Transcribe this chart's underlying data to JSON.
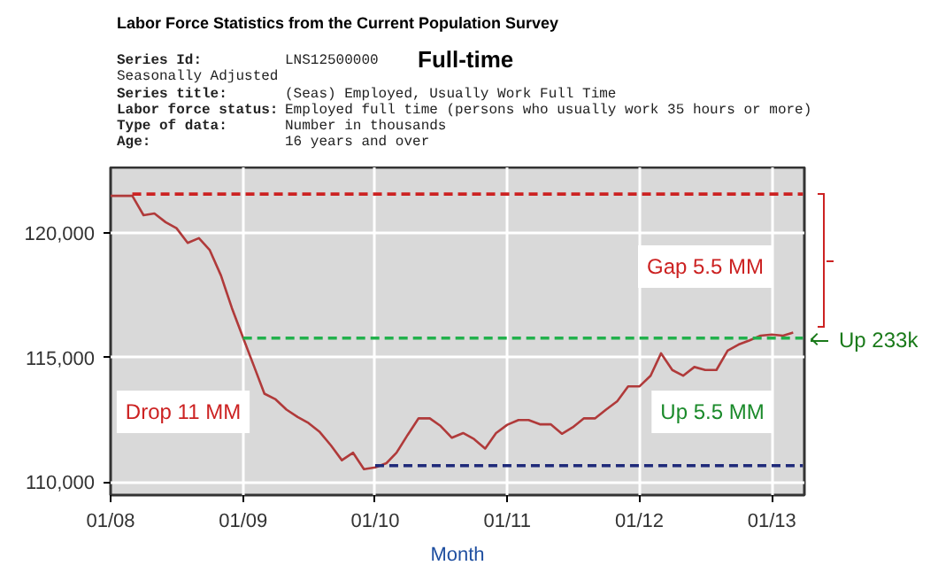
{
  "chart_data": {
    "type": "line",
    "title": "Labor Force Statistics from the Current Population Survey",
    "subtitle": "Full-time",
    "xlabel": "Month",
    "annotations": [
      "Series Id:",
      "LNS12500000",
      "Seasonally Adjusted",
      "Series title:",
      "(Seas) Employed, Usually Work Full Time",
      "Labor force status:",
      "Employed full time (persons who usually work 35 hours or more)",
      "Type of data:",
      "Number in thousands",
      "Age:",
      "16 years and over",
      "Drop 11 MM",
      "Gap 5.5 MM",
      "Up 5.5 MM",
      "Up 233k"
    ],
    "x": [
      "2008-01",
      "2008-02",
      "2008-03",
      "2008-04",
      "2008-05",
      "2008-06",
      "2008-07",
      "2008-08",
      "2008-09",
      "2008-10",
      "2008-11",
      "2008-12",
      "2009-01",
      "2009-02",
      "2009-03",
      "2009-04",
      "2009-05",
      "2009-06",
      "2009-07",
      "2009-08",
      "2009-09",
      "2009-10",
      "2009-11",
      "2009-12",
      "2010-01",
      "2010-02",
      "2010-03",
      "2010-04",
      "2010-05",
      "2010-06",
      "2010-07",
      "2010-08",
      "2010-09",
      "2010-10",
      "2010-11",
      "2010-12",
      "2011-01",
      "2011-02",
      "2011-03",
      "2011-04",
      "2011-05",
      "2011-06",
      "2011-07",
      "2011-08",
      "2011-09",
      "2011-10",
      "2011-11",
      "2011-12",
      "2012-01",
      "2012-02",
      "2012-03",
      "2012-04",
      "2012-05",
      "2012-06",
      "2012-07",
      "2012-08",
      "2012-09",
      "2012-10",
      "2012-11",
      "2012-12",
      "2013-01",
      "2013-02",
      "2013-03"
    ],
    "series": [
      {
        "color": "#b03a3a",
        "values": [
          121490,
          121490,
          121490,
          120710,
          120780,
          120430,
          120190,
          119600,
          119790,
          119310,
          118290,
          116990,
          115800,
          114620,
          113550,
          113320,
          112910,
          112610,
          112370,
          112010,
          111470,
          110880,
          111180,
          110520,
          110590,
          110760,
          111180,
          111900,
          112560,
          112560,
          112250,
          111780,
          111970,
          111730,
          111350,
          111970,
          112300,
          112490,
          112490,
          112320,
          112320,
          111940,
          112200,
          112560,
          112560,
          112910,
          113250,
          113840,
          113840,
          114270,
          115170,
          114500,
          114270,
          114620,
          114500,
          114500,
          115280,
          115520,
          115690,
          115880,
          115920,
          115880,
          116000
        ]
      },
      {
        "color": "#cc2222",
        "line_style": "dashed",
        "x": [
          "2008-03",
          "2013-03-28"
        ],
        "values": [
          121560,
          121560
        ]
      },
      {
        "color": "#22b14c",
        "line_style": "dashed",
        "x": [
          "2009-01",
          "2013-03-28"
        ],
        "values": [
          115780,
          115780
        ]
      },
      {
        "color": "#1f2a7a",
        "line_style": "dashed",
        "x": [
          "2010-01",
          "2013-03-28"
        ],
        "values": [
          110660,
          110660
        ]
      }
    ],
    "xlim": [
      "2008-01",
      "2013-04"
    ],
    "xticks": [
      {
        "value": "2008-01",
        "label": "01/08"
      },
      {
        "value": "2009-01",
        "label": "01/09"
      },
      {
        "value": "2010-01",
        "label": "01/10"
      },
      {
        "value": "2011-01",
        "label": "01/11"
      },
      {
        "value": "2012-01",
        "label": "01/12"
      },
      {
        "value": "2013-01",
        "label": "01/13"
      }
    ],
    "ylim": [
      109480,
      122630
    ],
    "yticks": [
      {
        "value": 110000,
        "label": "110,000"
      },
      {
        "value": 115000,
        "label": "115,000"
      },
      {
        "value": 120000,
        "label": "120,000"
      }
    ],
    "grid": true
  }
}
